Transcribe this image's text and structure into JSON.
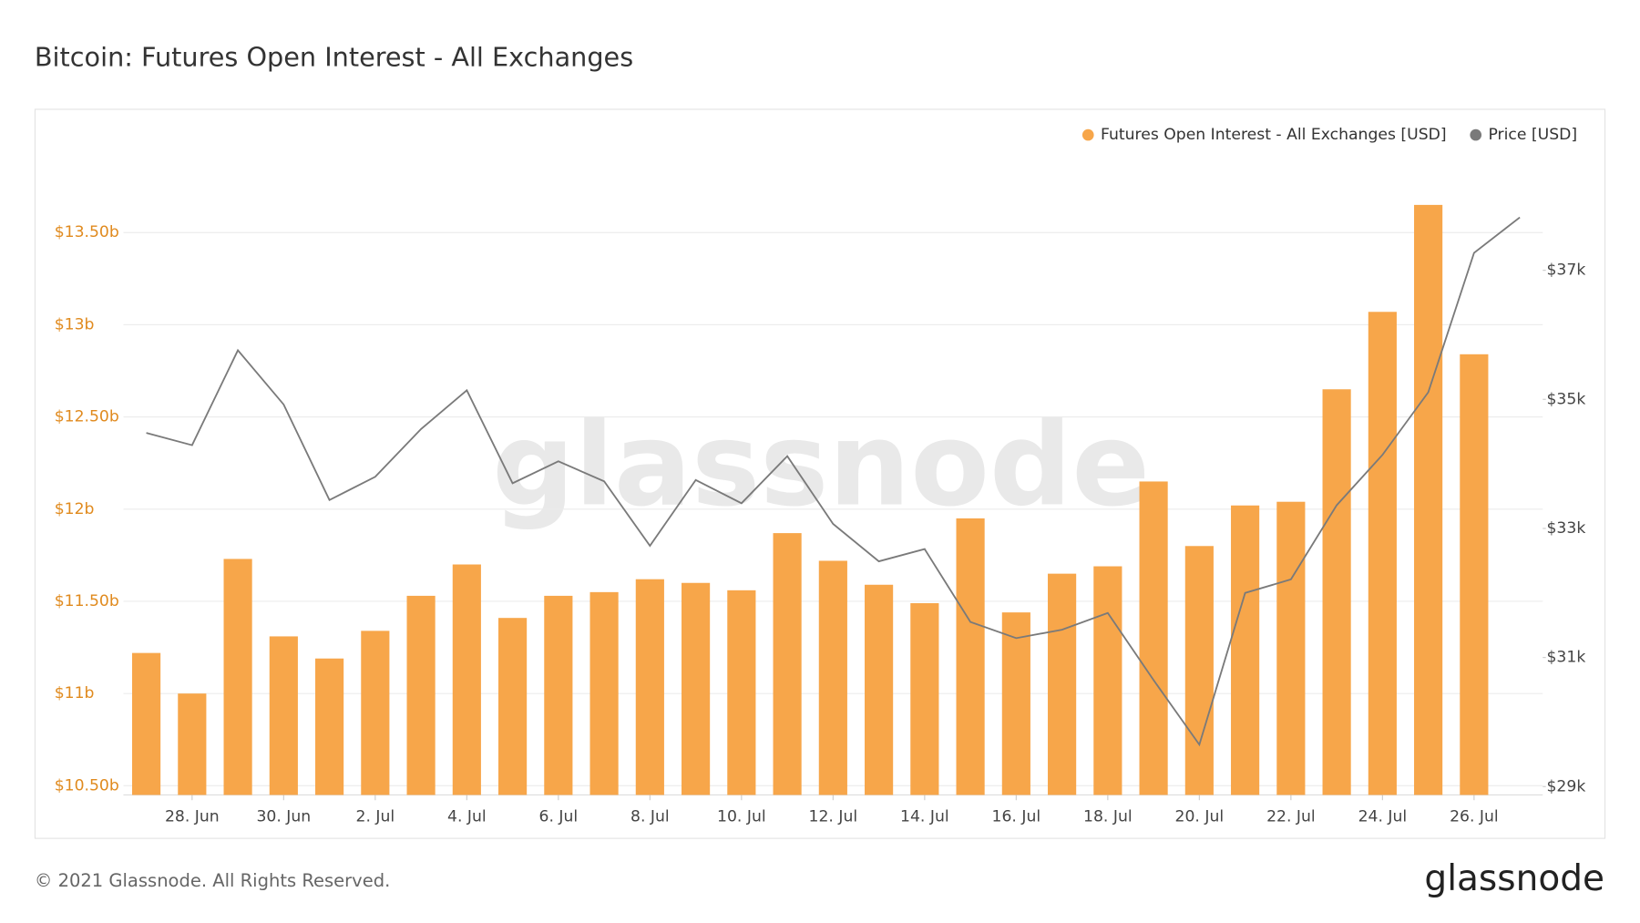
{
  "chart_data": {
    "type": "bar",
    "title": "Bitcoin: Futures Open Interest - All Exchanges",
    "categories": [
      null,
      "28. Jun",
      null,
      "30. Jun",
      null,
      "2. Jul",
      null,
      "4. Jul",
      null,
      "6. Jul",
      null,
      "8. Jul",
      null,
      "10. Jul",
      null,
      "12. Jul",
      null,
      "14. Jul",
      null,
      "16. Jul",
      null,
      "18. Jul",
      null,
      "20. Jul",
      null,
      "22. Jul",
      null,
      "24. Jul",
      null,
      "26. Jul",
      null
    ],
    "series": [
      {
        "name": "Futures Open Interest - All Exchanges [USD]",
        "type": "bar",
        "color": "#f7a64a",
        "values": [
          11.22,
          11.0,
          11.73,
          11.31,
          11.19,
          11.34,
          11.53,
          11.7,
          11.41,
          11.53,
          11.55,
          11.62,
          11.6,
          11.56,
          11.87,
          11.72,
          11.59,
          11.49,
          11.95,
          11.44,
          11.65,
          11.69,
          12.15,
          11.8,
          12.02,
          12.04,
          12.65,
          13.07,
          13.65,
          12.84,
          null
        ]
      },
      {
        "name": "Price [USD]",
        "type": "line",
        "color": "#7a7a7a",
        "axis": "y2",
        "values": [
          34480,
          34290,
          35760,
          34920,
          33440,
          33800,
          34540,
          35140,
          33700,
          34040,
          33730,
          32730,
          33750,
          33390,
          34120,
          33070,
          32490,
          32680,
          31550,
          31300,
          31430,
          31690,
          30650,
          29650,
          32000,
          32210,
          33360,
          34140,
          35110,
          37270,
          37820
        ]
      }
    ],
    "ylim": [
      10.45,
      13.95
    ],
    "yticks": [
      {
        "value": 10.5,
        "label": "$10.50b"
      },
      {
        "value": 11,
        "label": "$11b"
      },
      {
        "value": 11.5,
        "label": "$11.50b"
      },
      {
        "value": 12,
        "label": "$12b"
      },
      {
        "value": 12.5,
        "label": "$12.50b"
      },
      {
        "value": 13,
        "label": "$13b"
      },
      {
        "value": 13.5,
        "label": "$13.50b"
      }
    ],
    "y2lim": [
      28870,
      38870
    ],
    "y2ticks": [
      {
        "value": 29000,
        "label": "$29k"
      },
      {
        "value": 31000,
        "label": "$31k"
      },
      {
        "value": 33000,
        "label": "$33k"
      },
      {
        "value": 35000,
        "label": "$35k"
      },
      {
        "value": 37000,
        "label": "$37k"
      }
    ],
    "grid": true,
    "legend": "top-right"
  },
  "watermark": "glassnode",
  "copyright": "© 2021 Glassnode. All Rights Reserved.",
  "logo": "glassnode"
}
